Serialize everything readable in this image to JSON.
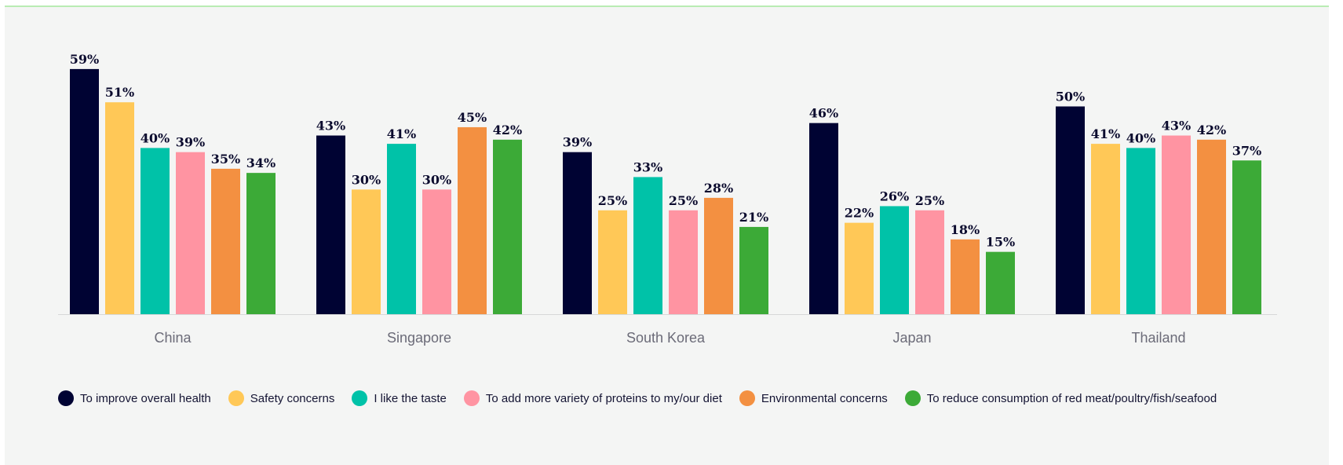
{
  "chart_data": {
    "type": "bar",
    "title": "",
    "xlabel": "",
    "ylabel": "",
    "ylim": [
      0,
      60
    ],
    "grid": false,
    "legend_placement": "bottom",
    "value_suffix": "%",
    "categories": [
      "China",
      "Singapore",
      "South Korea",
      "Japan",
      "Thailand"
    ],
    "series": [
      {
        "name": "To improve overall health",
        "color": "#000333",
        "values": [
          59,
          43,
          39,
          46,
          50
        ]
      },
      {
        "name": "Safety concerns",
        "color": "#ffc857",
        "values": [
          51,
          30,
          25,
          22,
          41
        ]
      },
      {
        "name": "I like the taste",
        "color": "#00c2a8",
        "values": [
          40,
          41,
          33,
          26,
          40
        ]
      },
      {
        "name": "To add more variety of proteins to my/our diet",
        "color": "#ff94a2",
        "values": [
          39,
          30,
          25,
          25,
          43
        ]
      },
      {
        "name": "Environmental concerns",
        "color": "#f39041",
        "values": [
          35,
          45,
          28,
          18,
          42
        ]
      },
      {
        "name": "To reduce consumption of red meat/poultry/fish/seafood",
        "color": "#3caa37",
        "values": [
          34,
          42,
          21,
          15,
          37
        ]
      }
    ]
  }
}
